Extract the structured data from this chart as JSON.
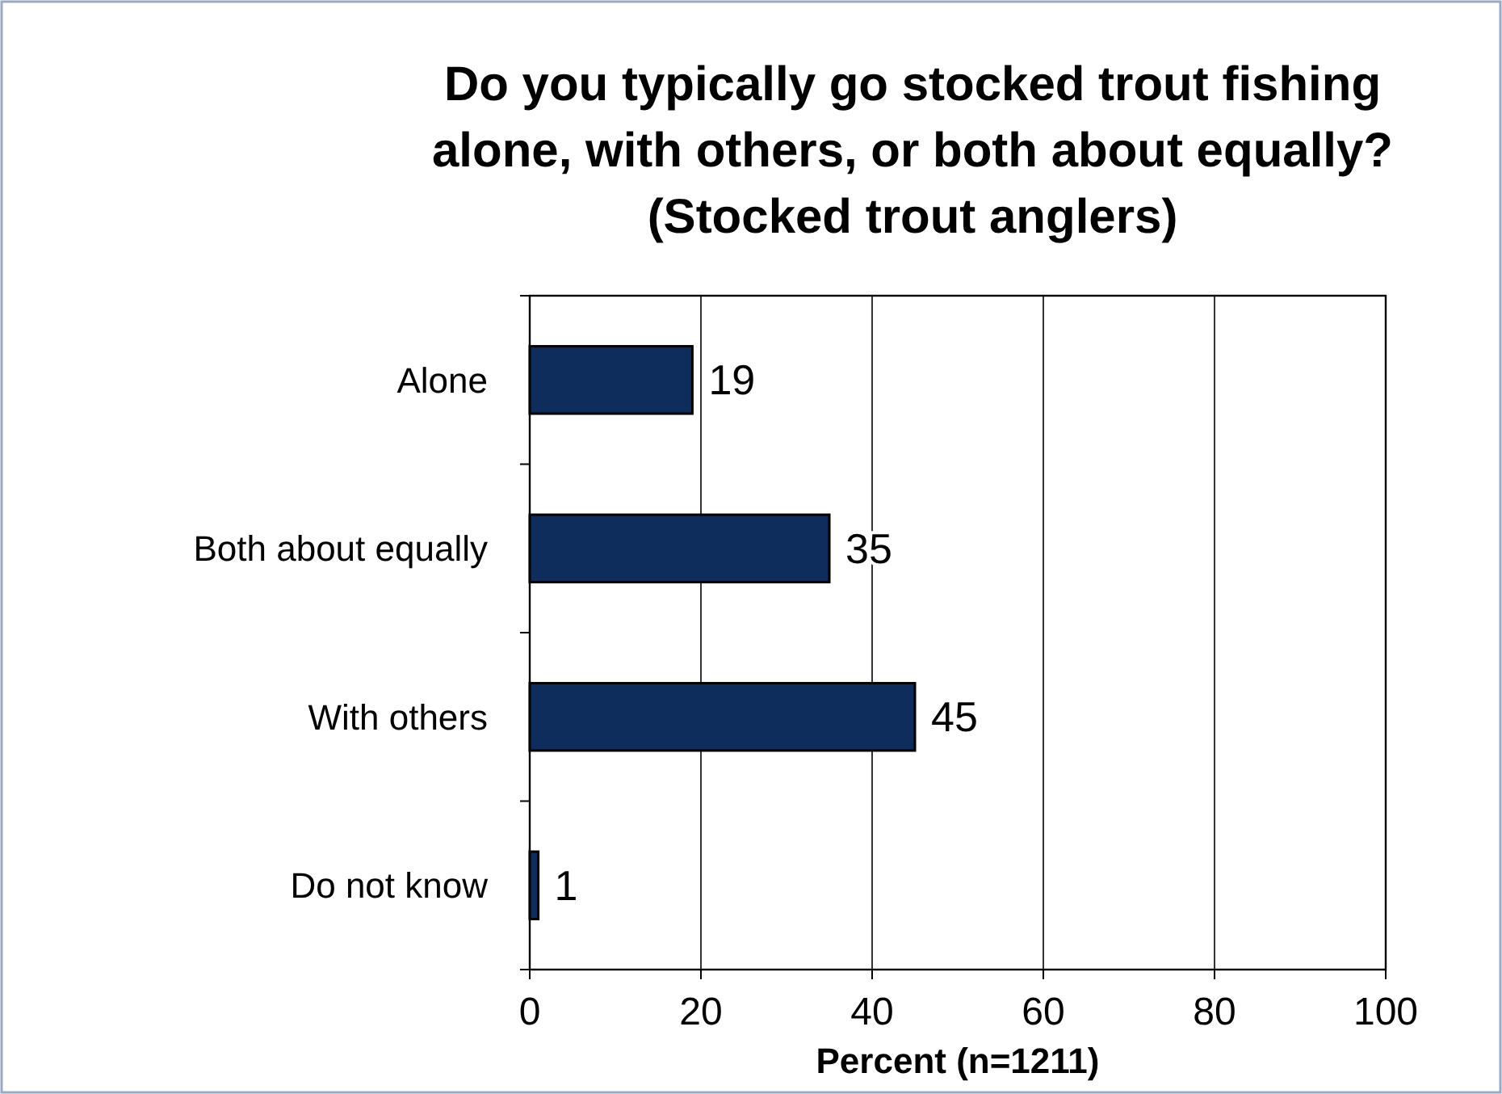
{
  "chart_data": {
    "type": "bar",
    "orientation": "horizontal",
    "title": "Do you typically go stocked trout fishing alone, with others, or both about equally? (Stocked trout anglers)",
    "xlabel": "Percent (n=1211)",
    "categories": [
      "Alone",
      "Both about equally",
      "With others",
      "Do not know"
    ],
    "values": [
      19,
      35,
      45,
      1
    ],
    "color": "#0f2d5c",
    "xlim": [
      0,
      100
    ],
    "xticks": [
      0,
      20,
      40,
      60,
      80,
      100
    ],
    "grid": "x",
    "data_labels": true
  }
}
